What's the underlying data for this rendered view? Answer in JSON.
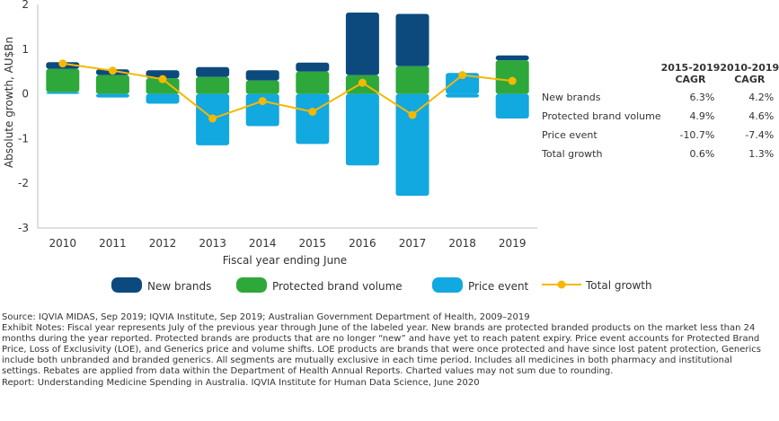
{
  "chart_data": {
    "type": "bar",
    "stacked": true,
    "categories": [
      "2010",
      "2011",
      "2012",
      "2013",
      "2014",
      "2015",
      "2016",
      "2017",
      "2018",
      "2019"
    ],
    "series": [
      {
        "name": "New brands",
        "color": "#0c4a7e",
        "values": [
          0.15,
          0.13,
          0.18,
          0.22,
          0.23,
          0.2,
          1.4,
          1.17,
          0.0,
          0.11
        ]
      },
      {
        "name": "Protected brand volume",
        "color": "#2ea83a",
        "values": [
          0.52,
          0.42,
          0.35,
          0.38,
          0.3,
          0.5,
          0.42,
          0.62,
          0.0,
          0.75
        ]
      },
      {
        "name": "Price event",
        "color": "#12a8e0",
        "values": [
          0.04,
          -0.08,
          -0.22,
          -1.15,
          -0.72,
          -1.12,
          -1.6,
          -2.28,
          -0.08,
          -0.55
        ]
      }
    ],
    "positive_price_event": [
      0.04,
      0,
      0,
      0,
      0,
      0,
      0,
      0,
      0.47,
      0
    ],
    "total_growth": {
      "name": "Total growth",
      "color": "#f5b800",
      "values": [
        0.68,
        0.52,
        0.33,
        -0.55,
        -0.16,
        -0.4,
        0.25,
        -0.47,
        0.42,
        0.29
      ]
    },
    "ylabel": "Absolute growth, AU$Bn",
    "xlabel": "Fiscal year ending June",
    "ylim": [
      -3,
      2
    ],
    "yticks": [
      "2",
      "1",
      "0",
      "-1",
      "-2",
      "-3"
    ],
    "grid": false,
    "legend_position": "bottom"
  },
  "legend": [
    "New brands",
    "Protected brand volume",
    "Price event",
    "Total growth"
  ],
  "cagr_table": {
    "col1_header_line1": "2015-2019",
    "col1_header_line2": "CAGR",
    "col2_header_line1": "2010-2019",
    "col2_header_line2": "CAGR",
    "rows": [
      {
        "label": "New brands",
        "a": "6.3%",
        "b": "4.2%"
      },
      {
        "label": "Protected brand volume",
        "a": "4.9%",
        "b": "4.6%"
      },
      {
        "label": "Price event",
        "a": "-10.7%",
        "b": "-7.4%"
      },
      {
        "label": "Total growth",
        "a": "0.6%",
        "b": "1.3%"
      }
    ]
  },
  "notes": {
    "source": "Source: IQVIA MIDAS, Sep 2019; IQVIA Institute, Sep 2019; Australian Government Department of Health, 2009–2019",
    "exhibit_notes": "Exhibit Notes: Fiscal year represents July of the previous year through June of the labeled year. New brands are protected branded products on the market less than 24 months during the year reported. Protected brands are products that are no longer “new” and have yet to reach patent expiry. Price event accounts for Protected Brand Price, Loss of Exclusivity (LOE), and Generics price and volume shifts. LOE products are brands that were once protected and have since lost patent protection, Generics include both unbranded and branded generics. All segments are mutually exclusive in each time period. Includes all medicines in both pharmacy and institutional settings. Rebates are applied from data within the Department of Health Annual Reports. Charted values may not sum due to rounding.",
    "report": "Report: Understanding Medicine Spending in Australia. IQVIA Institute for Human Data Science, June 2020"
  }
}
